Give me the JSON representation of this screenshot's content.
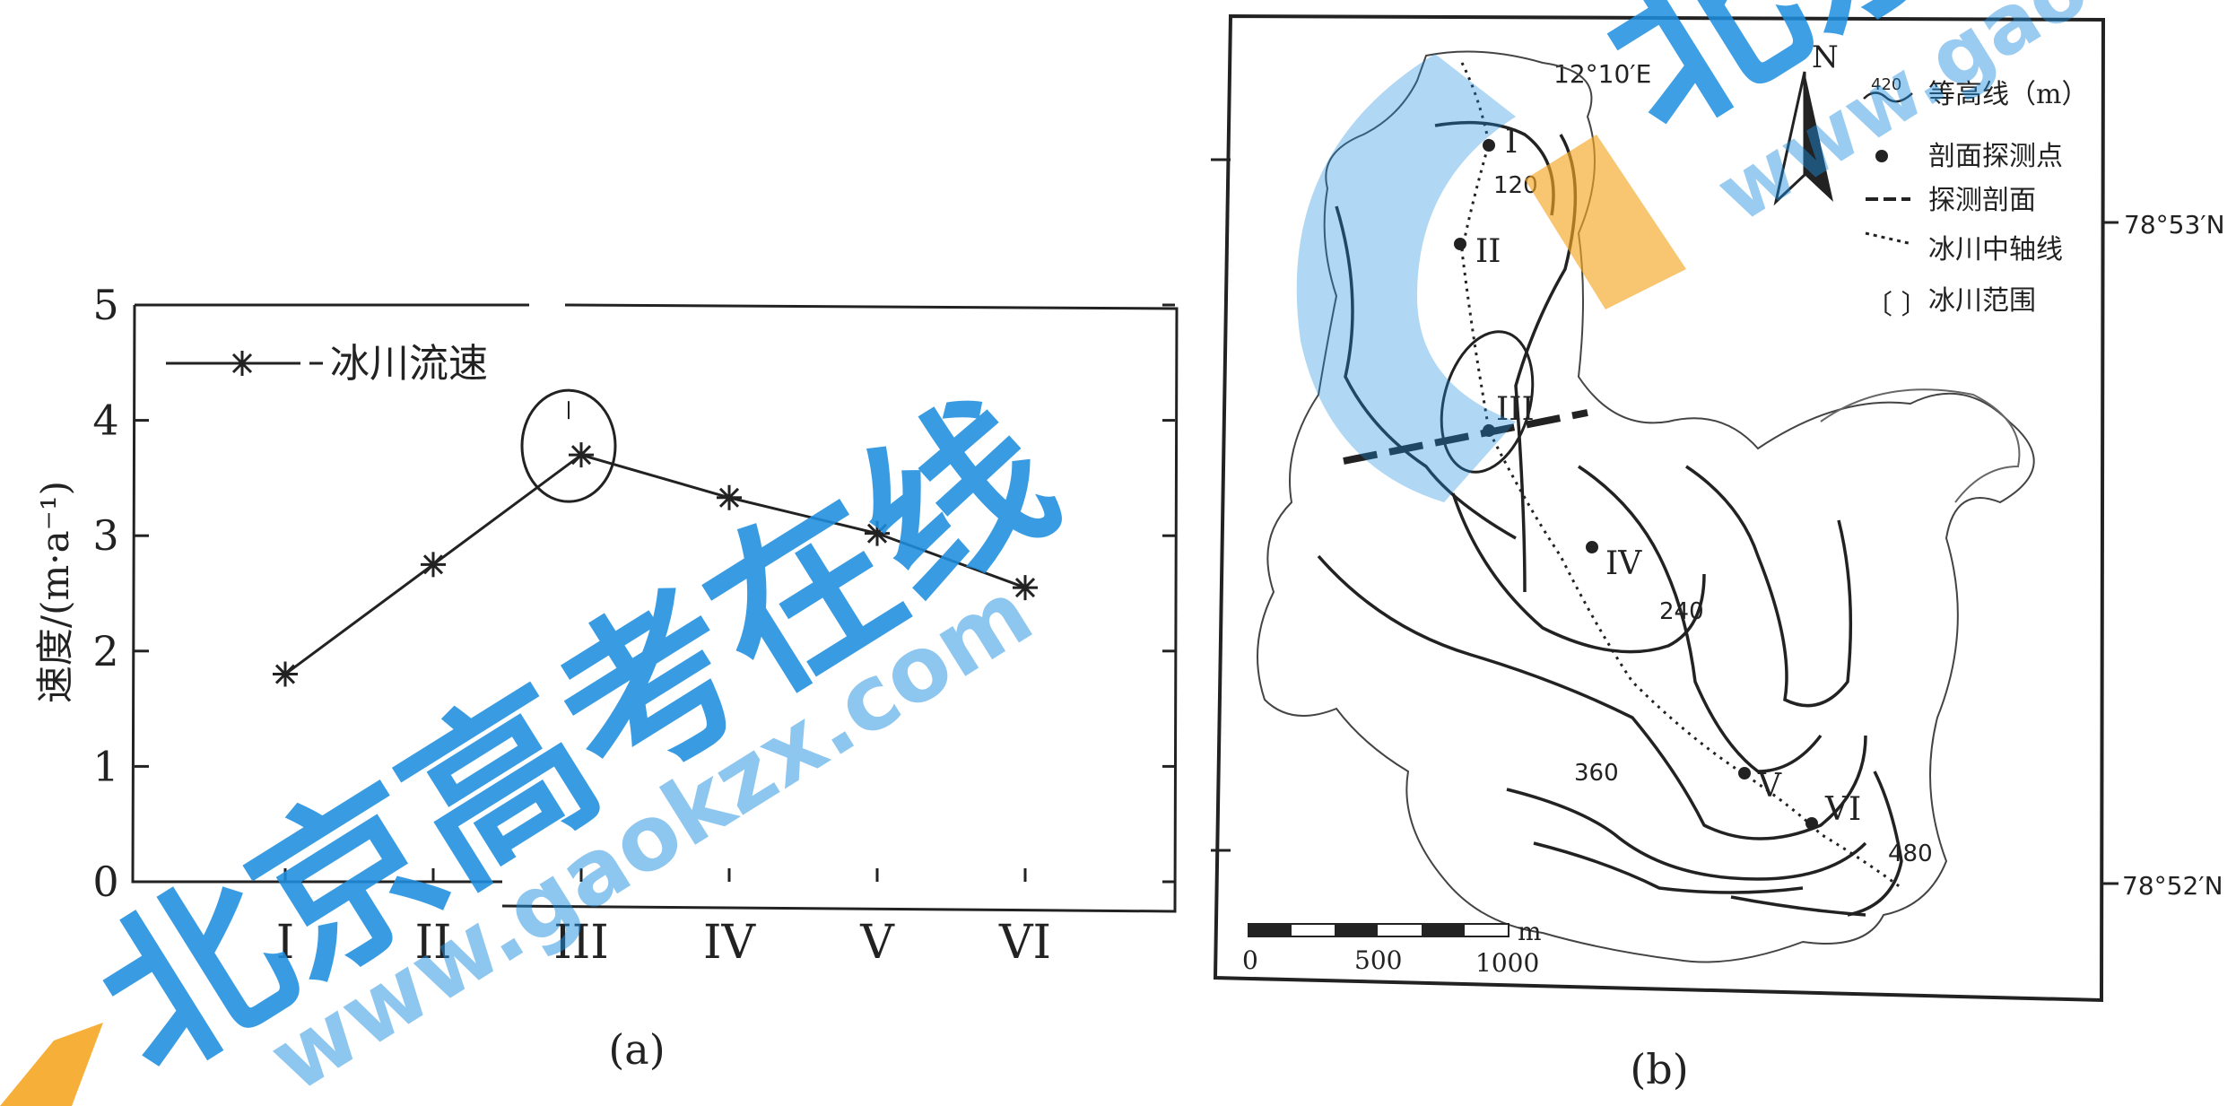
{
  "chart_data": {
    "type": "line",
    "categories": [
      "I",
      "II",
      "III",
      "IV",
      "V",
      "VI"
    ],
    "series": [
      {
        "name": "冰川流速",
        "values": [
          1.8,
          2.75,
          3.7,
          3.33,
          3.02,
          2.55
        ]
      }
    ],
    "ylabel": "速度/(m·a⁻¹)",
    "ylim": [
      0,
      5
    ],
    "yticks": [
      "0",
      "1",
      "2",
      "3",
      "4",
      "5"
    ],
    "caption": "(a)",
    "legend_position": "top-left",
    "marker": "asterisk",
    "highlight_category": "III",
    "line_color": "#222222"
  },
  "map": {
    "caption": "(b)",
    "longitude_label": "12°10′E",
    "lat_top": "78°53′N",
    "lat_bottom": "78°52′N",
    "north_label": "N",
    "legend": [
      {
        "symbol": "contour-icon",
        "sample": "420",
        "label": "等高线（m）"
      },
      {
        "symbol": "dot-icon",
        "label": "剖面探测点"
      },
      {
        "symbol": "dash-icon",
        "label": "探测剖面"
      },
      {
        "symbol": "dotted-icon",
        "label": "冰川中轴线"
      },
      {
        "symbol": "bracket-icon",
        "label": "冰川范围"
      }
    ],
    "points": [
      "I",
      "II",
      "III",
      "IV",
      "V",
      "VI"
    ],
    "contours": [
      "120",
      "240",
      "360",
      "480"
    ],
    "scale_labels": [
      "0",
      "500",
      "1000"
    ],
    "scale_unit": "m"
  },
  "watermark": {
    "brand": "北京高考在线",
    "url1": "www.gaokzx.com",
    "url2": "www.gao",
    "blue": "#1e8fe0",
    "orange": "#f5a623"
  }
}
